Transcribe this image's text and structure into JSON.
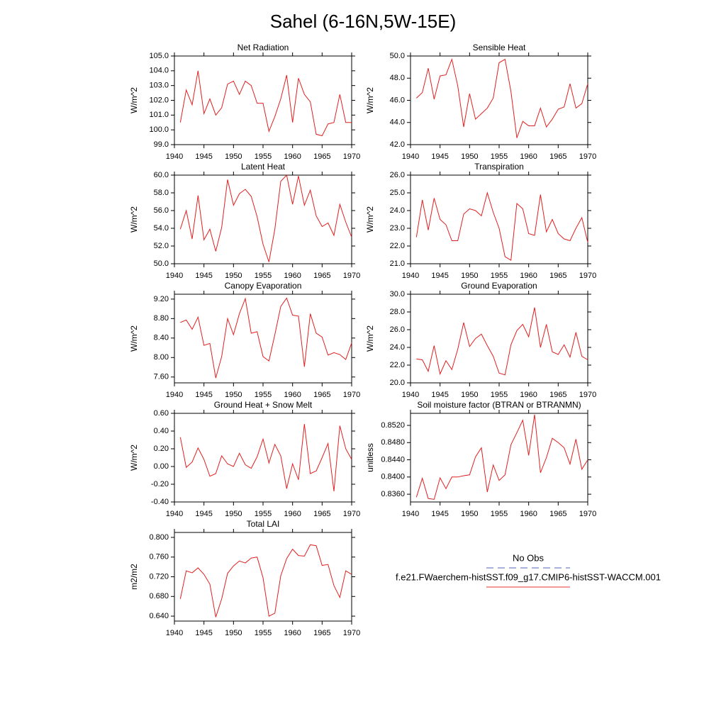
{
  "title": "Sahel (6-16N,5W-15E)",
  "legend": [
    {
      "name": "No Obs",
      "color": "#5060b8",
      "dashed": true
    },
    {
      "name": "f.e21.FWaerchem-histSST.f09_g17.CMIP6-histSST-WACCM.001",
      "color": "#e83030",
      "dashed": false
    }
  ],
  "chart_data": [
    {
      "type": "line",
      "title": "Net Radiation",
      "y_label": "W/m^2",
      "color": "#e02020",
      "x": [
        1941,
        1942,
        1943,
        1944,
        1945,
        1946,
        1947,
        1948,
        1949,
        1950,
        1951,
        1952,
        1953,
        1954,
        1955,
        1956,
        1957,
        1958,
        1959,
        1960,
        1961,
        1962,
        1963,
        1964,
        1965,
        1966,
        1967,
        1968,
        1969,
        1970
      ],
      "values": [
        100.5,
        102.7,
        101.7,
        104.0,
        101.1,
        102.1,
        101.0,
        101.5,
        103.1,
        103.3,
        102.4,
        103.3,
        103.0,
        101.8,
        101.8,
        99.9,
        100.9,
        102.1,
        103.7,
        100.5,
        103.5,
        102.4,
        101.9,
        99.7,
        99.6,
        100.4,
        100.5,
        102.4,
        100.5,
        100.5
      ],
      "xlim": [
        1940,
        1970
      ],
      "xticks": [
        1940,
        1945,
        1950,
        1955,
        1960,
        1965,
        1970
      ],
      "ylim": [
        99,
        105
      ],
      "yticks": [
        {
          "value": 99,
          "label": "99.0"
        },
        {
          "value": 100,
          "label": "100.0"
        },
        {
          "value": 101,
          "label": "101.0"
        },
        {
          "value": 102,
          "label": "102.0"
        },
        {
          "value": 103,
          "label": "103.0"
        },
        {
          "value": 104,
          "label": "104.0"
        },
        {
          "value": 105,
          "label": "105.0"
        }
      ]
    },
    {
      "type": "line",
      "title": "Sensible Heat",
      "y_label": "W/m^2",
      "color": "#e02020",
      "x": [
        1941,
        1942,
        1943,
        1944,
        1945,
        1946,
        1947,
        1948,
        1949,
        1950,
        1951,
        1952,
        1953,
        1954,
        1955,
        1956,
        1957,
        1958,
        1959,
        1960,
        1961,
        1962,
        1963,
        1964,
        1965,
        1966,
        1967,
        1968,
        1969,
        1970
      ],
      "values": [
        46.2,
        46.7,
        48.9,
        46.1,
        48.2,
        48.3,
        49.7,
        47.3,
        43.6,
        46.6,
        44.3,
        44.8,
        45.3,
        46.2,
        49.4,
        49.7,
        46.8,
        42.6,
        44.1,
        43.7,
        43.7,
        45.3,
        43.6,
        44.3,
        45.2,
        45.4,
        47.5,
        45.3,
        45.7,
        47.5
      ],
      "xlim": [
        1940,
        1970
      ],
      "xticks": [
        1940,
        1945,
        1950,
        1955,
        1960,
        1965,
        1970
      ],
      "ylim": [
        42,
        50
      ],
      "yticks": [
        {
          "value": 42,
          "label": "42.0"
        },
        {
          "value": 44,
          "label": "44.0"
        },
        {
          "value": 46,
          "label": "46.0"
        },
        {
          "value": 48,
          "label": "48.0"
        },
        {
          "value": 50,
          "label": "50.0"
        }
      ]
    },
    {
      "type": "line",
      "title": "Latent Heat",
      "y_label": "W/m^2",
      "color": "#e02020",
      "x": [
        1941,
        1942,
        1943,
        1944,
        1945,
        1946,
        1947,
        1948,
        1949,
        1950,
        1951,
        1952,
        1953,
        1954,
        1955,
        1956,
        1957,
        1958,
        1959,
        1960,
        1961,
        1962,
        1963,
        1964,
        1965,
        1966,
        1967,
        1968,
        1969,
        1970
      ],
      "values": [
        53.9,
        56.0,
        52.8,
        57.7,
        52.7,
        53.9,
        51.4,
        54.1,
        59.5,
        56.6,
        57.9,
        58.4,
        57.6,
        55.3,
        52.2,
        50.2,
        53.9,
        59.3,
        60.0,
        56.7,
        59.9,
        56.6,
        58.3,
        55.4,
        54.2,
        54.6,
        53.2,
        56.7,
        54.7,
        53.0
      ],
      "xlim": [
        1940,
        1970
      ],
      "xticks": [
        1940,
        1945,
        1950,
        1955,
        1960,
        1965,
        1970
      ],
      "ylim": [
        50,
        60
      ],
      "yticks": [
        {
          "value": 50,
          "label": "50.0"
        },
        {
          "value": 52,
          "label": "52.0"
        },
        {
          "value": 54,
          "label": "54.0"
        },
        {
          "value": 56,
          "label": "56.0"
        },
        {
          "value": 58,
          "label": "58.0"
        },
        {
          "value": 60,
          "label": "60.0"
        }
      ]
    },
    {
      "type": "line",
      "title": "Transpiration",
      "y_label": "W/m^2",
      "color": "#e02020",
      "x": [
        1941,
        1942,
        1943,
        1944,
        1945,
        1946,
        1947,
        1948,
        1949,
        1950,
        1951,
        1952,
        1953,
        1954,
        1955,
        1956,
        1957,
        1958,
        1959,
        1960,
        1961,
        1962,
        1963,
        1964,
        1965,
        1966,
        1967,
        1968,
        1969,
        1970
      ],
      "values": [
        22.5,
        24.6,
        22.9,
        24.7,
        23.5,
        23.2,
        22.3,
        22.3,
        23.8,
        24.1,
        24.0,
        23.7,
        25.0,
        23.9,
        23.0,
        21.4,
        21.2,
        24.4,
        24.1,
        22.7,
        22.6,
        24.9,
        22.8,
        23.5,
        22.7,
        22.4,
        22.3,
        23.0,
        23.6,
        22.2
      ],
      "xlim": [
        1940,
        1970
      ],
      "xticks": [
        1940,
        1945,
        1950,
        1955,
        1960,
        1965,
        1970
      ],
      "ylim": [
        21,
        26
      ],
      "yticks": [
        {
          "value": 21,
          "label": "21.0"
        },
        {
          "value": 22,
          "label": "22.0"
        },
        {
          "value": 23,
          "label": "23.0"
        },
        {
          "value": 24,
          "label": "24.0"
        },
        {
          "value": 25,
          "label": "25.0"
        },
        {
          "value": 26,
          "label": "26.0"
        }
      ]
    },
    {
      "type": "line",
      "title": "Canopy Evaporation",
      "y_label": "W/m^2",
      "color": "#e02020",
      "x": [
        1941,
        1942,
        1943,
        1944,
        1945,
        1946,
        1947,
        1948,
        1949,
        1950,
        1951,
        1952,
        1953,
        1954,
        1955,
        1956,
        1957,
        1958,
        1959,
        1960,
        1961,
        1962,
        1963,
        1964,
        1965,
        1966,
        1967,
        1968,
        1969,
        1970
      ],
      "values": [
        8.72,
        8.77,
        8.58,
        8.83,
        8.25,
        8.29,
        7.58,
        8.02,
        8.8,
        8.47,
        8.9,
        9.21,
        8.5,
        8.53,
        8.02,
        7.93,
        8.47,
        9.05,
        9.22,
        8.87,
        8.85,
        7.81,
        8.9,
        8.5,
        8.42,
        8.05,
        8.1,
        8.06,
        7.96,
        8.3
      ],
      "xlim": [
        1940,
        1970
      ],
      "xticks": [
        1940,
        1945,
        1950,
        1955,
        1960,
        1965,
        1970
      ],
      "ylim": [
        7.48,
        9.3
      ],
      "yticks": [
        {
          "value": 7.6,
          "label": "7.60"
        },
        {
          "value": 8,
          "label": "8.00"
        },
        {
          "value": 8.4,
          "label": "8.40"
        },
        {
          "value": 8.8,
          "label": "8.80"
        },
        {
          "value": 9.2,
          "label": "9.20"
        }
      ]
    },
    {
      "type": "line",
      "title": "Ground Evaporation",
      "y_label": "W/m^2",
      "color": "#e02020",
      "x": [
        1941,
        1942,
        1943,
        1944,
        1945,
        1946,
        1947,
        1948,
        1949,
        1950,
        1951,
        1952,
        1953,
        1954,
        1955,
        1956,
        1957,
        1958,
        1959,
        1960,
        1961,
        1962,
        1963,
        1964,
        1965,
        1966,
        1967,
        1968,
        1969,
        1970
      ],
      "values": [
        22.7,
        22.6,
        21.3,
        24.2,
        21.0,
        22.5,
        21.5,
        23.8,
        26.8,
        24.1,
        25.0,
        25.5,
        24.2,
        23.0,
        21.1,
        20.9,
        24.3,
        25.9,
        26.6,
        25.2,
        28.5,
        24.0,
        26.6,
        23.5,
        23.2,
        24.3,
        22.9,
        25.7,
        23.0,
        22.6
      ],
      "xlim": [
        1940,
        1970
      ],
      "xticks": [
        1940,
        1945,
        1950,
        1955,
        1960,
        1965,
        1970
      ],
      "ylim": [
        20,
        30
      ],
      "yticks": [
        {
          "value": 20,
          "label": "20.0"
        },
        {
          "value": 22,
          "label": "22.0"
        },
        {
          "value": 24,
          "label": "24.0"
        },
        {
          "value": 26,
          "label": "26.0"
        },
        {
          "value": 28,
          "label": "28.0"
        },
        {
          "value": 30,
          "label": "30.0"
        }
      ]
    },
    {
      "type": "line",
      "title": "Ground Heat + Snow Melt",
      "y_label": "W/m^2",
      "color": "#e02020",
      "x": [
        1941,
        1942,
        1943,
        1944,
        1945,
        1946,
        1947,
        1948,
        1949,
        1950,
        1951,
        1952,
        1953,
        1954,
        1955,
        1956,
        1957,
        1958,
        1959,
        1960,
        1961,
        1962,
        1963,
        1964,
        1965,
        1966,
        1967,
        1968,
        1969,
        1970
      ],
      "values": [
        0.33,
        -0.01,
        0.05,
        0.21,
        0.08,
        -0.11,
        -0.08,
        0.12,
        0.03,
        0.0,
        0.15,
        0.02,
        -0.02,
        0.11,
        0.31,
        0.04,
        0.25,
        0.12,
        -0.25,
        0.03,
        -0.15,
        0.48,
        -0.08,
        -0.05,
        0.1,
        0.26,
        -0.28,
        0.46,
        0.2,
        0.08
      ],
      "xlim": [
        1940,
        1970
      ],
      "xticks": [
        1940,
        1945,
        1950,
        1955,
        1960,
        1965,
        1970
      ],
      "ylim": [
        -0.4,
        0.6
      ],
      "yticks": [
        {
          "value": -0.4,
          "label": "-0.40"
        },
        {
          "value": -0.2,
          "label": "-0.20"
        },
        {
          "value": 0,
          "label": "0.00"
        },
        {
          "value": 0.2,
          "label": "0.20"
        },
        {
          "value": 0.4,
          "label": "0.40"
        },
        {
          "value": 0.6,
          "label": "0.60"
        }
      ]
    },
    {
      "type": "line",
      "title": "Soil moisture factor (BTRAN or BTRANMN)",
      "y_label": "unitless",
      "color": "#e02020",
      "x": [
        1941,
        1942,
        1943,
        1944,
        1945,
        1946,
        1947,
        1948,
        1949,
        1950,
        1951,
        1952,
        1953,
        1954,
        1955,
        1956,
        1957,
        1958,
        1959,
        1960,
        1961,
        1962,
        1963,
        1964,
        1965,
        1966,
        1967,
        1968,
        1969,
        1970
      ],
      "values": [
        0.8353,
        0.8397,
        0.835,
        0.8348,
        0.8398,
        0.8373,
        0.84,
        0.84,
        0.8403,
        0.8405,
        0.8447,
        0.8468,
        0.8365,
        0.8428,
        0.8392,
        0.8405,
        0.8475,
        0.8503,
        0.8532,
        0.845,
        0.8545,
        0.841,
        0.8445,
        0.849,
        0.848,
        0.8468,
        0.843,
        0.8488,
        0.8418,
        0.844
      ],
      "xlim": [
        1940,
        1970
      ],
      "xticks": [
        1940,
        1945,
        1950,
        1955,
        1960,
        1965,
        1970
      ],
      "ylim": [
        0.8342,
        0.8548
      ],
      "yticks": [
        {
          "value": 0.836,
          "label": "0.8360"
        },
        {
          "value": 0.84,
          "label": "0.8400"
        },
        {
          "value": 0.844,
          "label": "0.8440"
        },
        {
          "value": 0.848,
          "label": "0.8480"
        },
        {
          "value": 0.852,
          "label": "0.8520"
        }
      ]
    },
    {
      "type": "line",
      "title": "Total LAI",
      "y_label": "m2/m2",
      "color": "#e02020",
      "x": [
        1941,
        1942,
        1943,
        1944,
        1945,
        1946,
        1947,
        1948,
        1949,
        1950,
        1951,
        1952,
        1953,
        1954,
        1955,
        1956,
        1957,
        1958,
        1959,
        1960,
        1961,
        1962,
        1963,
        1964,
        1965,
        1966,
        1967,
        1968,
        1969,
        1970
      ],
      "values": [
        0.675,
        0.732,
        0.728,
        0.738,
        0.725,
        0.705,
        0.638,
        0.675,
        0.727,
        0.742,
        0.752,
        0.748,
        0.758,
        0.76,
        0.718,
        0.64,
        0.646,
        0.722,
        0.757,
        0.776,
        0.763,
        0.762,
        0.785,
        0.783,
        0.743,
        0.745,
        0.702,
        0.678,
        0.732,
        0.725
      ],
      "xlim": [
        1940,
        1970
      ],
      "xticks": [
        1940,
        1945,
        1950,
        1955,
        1960,
        1965,
        1970
      ],
      "ylim": [
        0.63,
        0.81
      ],
      "yticks": [
        {
          "value": 0.64,
          "label": "0.640"
        },
        {
          "value": 0.68,
          "label": "0.680"
        },
        {
          "value": 0.72,
          "label": "0.720"
        },
        {
          "value": 0.76,
          "label": "0.760"
        },
        {
          "value": 0.8,
          "label": "0.800"
        }
      ]
    }
  ]
}
